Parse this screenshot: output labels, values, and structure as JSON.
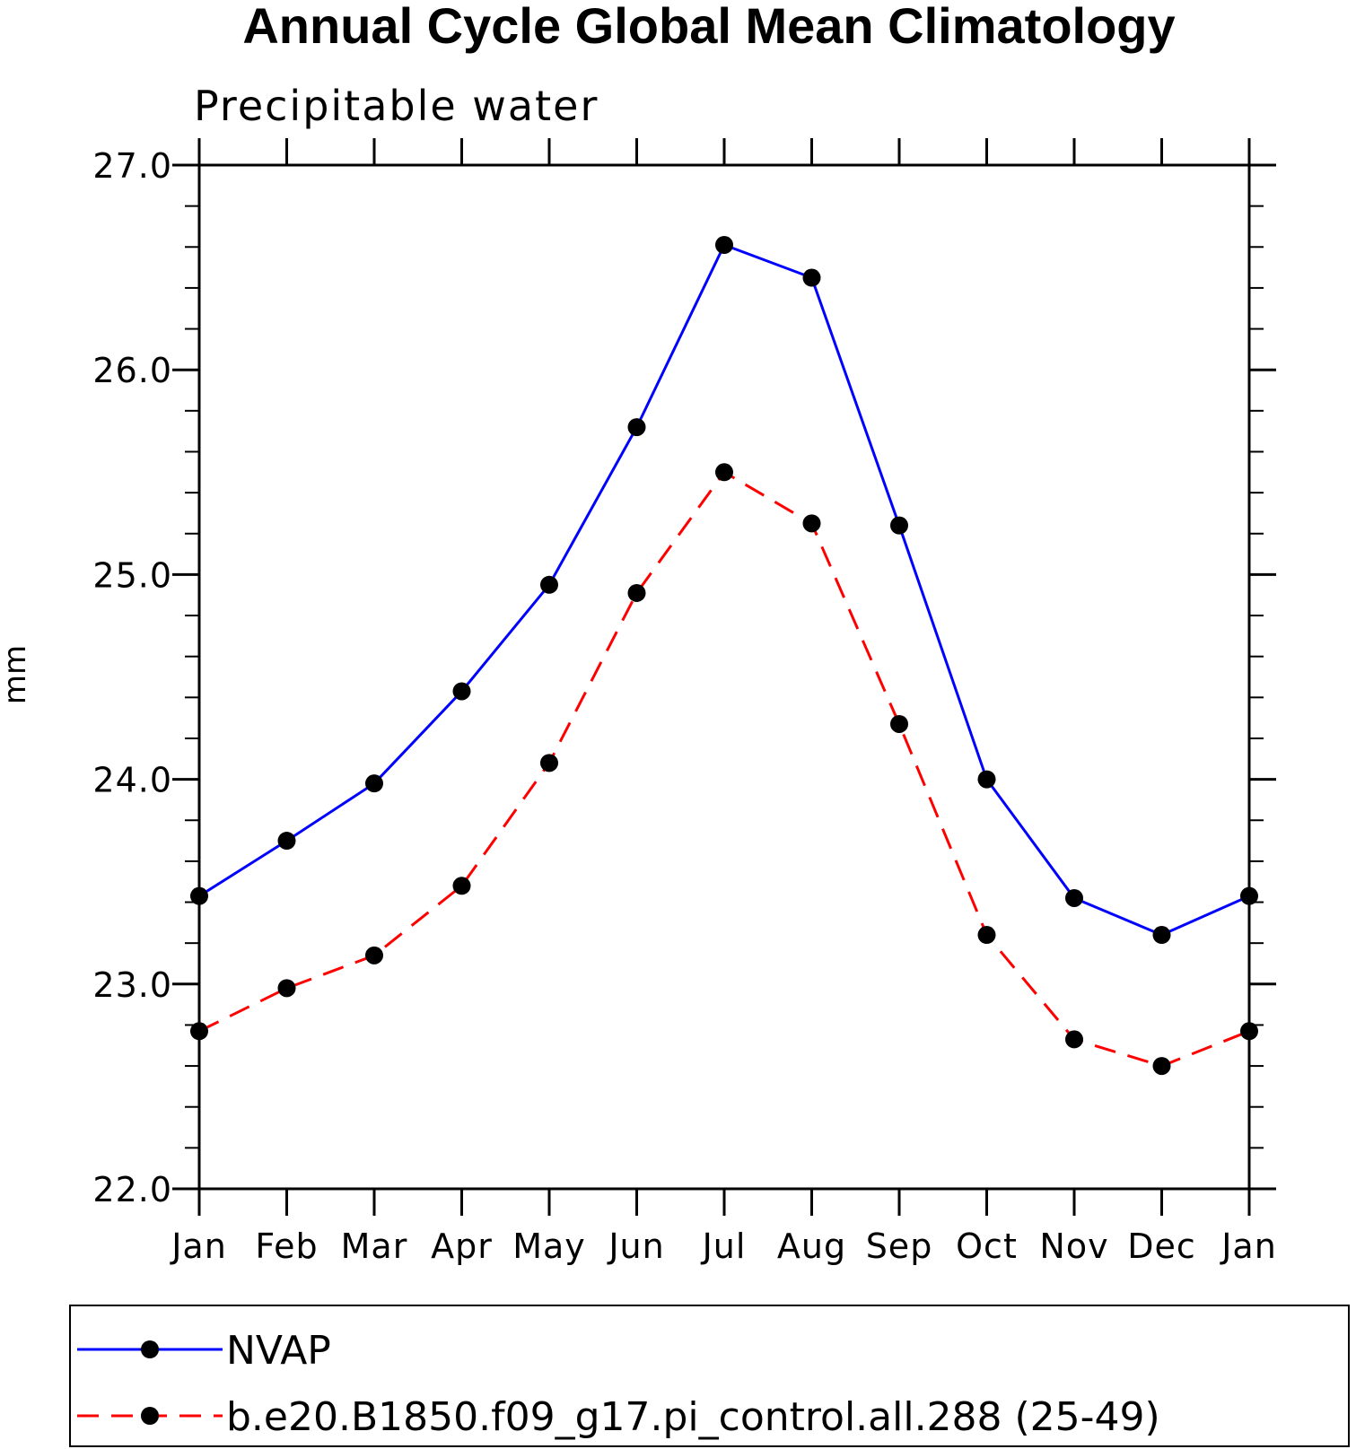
{
  "chart_data": {
    "type": "line",
    "title": "Annual Cycle Global Mean Climatology",
    "subtitle": "Precipitable water",
    "xlabel": "",
    "ylabel": "mm",
    "categories": [
      "Jan",
      "Feb",
      "Mar",
      "Apr",
      "May",
      "Jun",
      "Jul",
      "Aug",
      "Sep",
      "Oct",
      "Nov",
      "Dec",
      "Jan"
    ],
    "ylim": [
      22.0,
      27.0
    ],
    "yticks": [
      "22.0",
      "23.0",
      "24.0",
      "25.0",
      "26.0",
      "27.0"
    ],
    "ytick_values": [
      22.0,
      23.0,
      24.0,
      25.0,
      26.0,
      27.0
    ],
    "y_minor_step": 0.2,
    "grid": false,
    "legend_position": "bottom",
    "series": [
      {
        "name": "NVAP",
        "color": "#0000ff",
        "line_style": "solid",
        "marker": "filled-circle",
        "values": [
          23.43,
          23.7,
          23.98,
          24.43,
          24.95,
          25.72,
          26.61,
          26.45,
          25.24,
          24.0,
          23.42,
          23.24,
          23.43
        ]
      },
      {
        "name": "b.e20.B1850.f09_g17.pi_control.all.288 (25-49)",
        "color": "#ff0000",
        "line_style": "dashed",
        "marker": "filled-circle",
        "values": [
          22.77,
          22.98,
          23.14,
          23.48,
          24.08,
          24.91,
          25.5,
          25.25,
          24.27,
          23.24,
          22.73,
          22.6,
          22.77
        ]
      }
    ]
  }
}
